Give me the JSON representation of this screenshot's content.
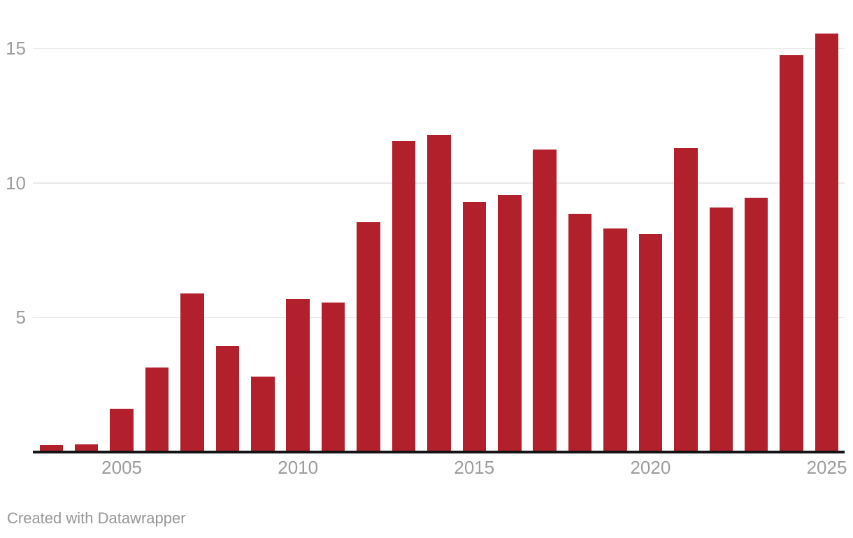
{
  "chart_data": {
    "type": "bar",
    "title": "",
    "xlabel": "",
    "ylabel": "",
    "categories": [
      2003,
      2004,
      2005,
      2006,
      2007,
      2008,
      2009,
      2010,
      2011,
      2012,
      2013,
      2014,
      2015,
      2016,
      2017,
      2018,
      2019,
      2020,
      2021,
      2022,
      2023,
      2024,
      2025
    ],
    "values": [
      0.25,
      0.3,
      1.6,
      3.15,
      5.9,
      3.95,
      2.8,
      5.7,
      5.55,
      8.55,
      11.55,
      11.8,
      9.3,
      9.55,
      11.25,
      8.85,
      8.3,
      8.1,
      11.3,
      9.1,
      9.45,
      14.75,
      15.55
    ],
    "ylim": [
      0,
      16.6
    ],
    "y_ticks": [
      5,
      10,
      15
    ],
    "x_ticks": [
      2005,
      2010,
      2015,
      2020,
      2025
    ],
    "grid": "horizontal",
    "legend": "none",
    "bar_color": "#b2202c",
    "gridline_color": "#e9e9e9",
    "axis_line_color": "#141414",
    "tick_label_color": "#9c9c9c",
    "attribution": "Created with Datawrapper"
  }
}
